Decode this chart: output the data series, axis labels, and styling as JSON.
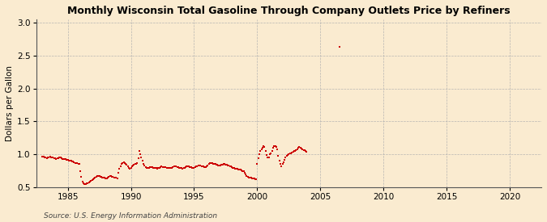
{
  "title": "Monthly Wisconsin Total Gasoline Through Company Outlets Price by Refiners",
  "ylabel": "Dollars per Gallon",
  "source": "Source: U.S. Energy Information Administration",
  "background_color": "#faebd0",
  "line_color": "#cc0000",
  "xlim": [
    1982.5,
    2022.5
  ],
  "ylim": [
    0.5,
    3.05
  ],
  "xticks": [
    1985,
    1990,
    1995,
    2000,
    2005,
    2010,
    2015,
    2020
  ],
  "yticks": [
    0.5,
    1.0,
    1.5,
    2.0,
    2.5,
    3.0
  ],
  "data": [
    [
      1983.0,
      0.96
    ],
    [
      1983.08,
      0.962
    ],
    [
      1983.17,
      0.958
    ],
    [
      1983.25,
      0.95
    ],
    [
      1983.33,
      0.945
    ],
    [
      1983.42,
      0.948
    ],
    [
      1983.5,
      0.955
    ],
    [
      1983.58,
      0.96
    ],
    [
      1983.67,
      0.958
    ],
    [
      1983.75,
      0.952
    ],
    [
      1983.83,
      0.948
    ],
    [
      1983.92,
      0.942
    ],
    [
      1984.0,
      0.938
    ],
    [
      1984.08,
      0.932
    ],
    [
      1984.17,
      0.938
    ],
    [
      1984.25,
      0.945
    ],
    [
      1984.33,
      0.95
    ],
    [
      1984.42,
      0.948
    ],
    [
      1984.5,
      0.94
    ],
    [
      1984.58,
      0.932
    ],
    [
      1984.67,
      0.928
    ],
    [
      1984.75,
      0.925
    ],
    [
      1984.83,
      0.922
    ],
    [
      1984.92,
      0.918
    ],
    [
      1985.0,
      0.912
    ],
    [
      1985.08,
      0.908
    ],
    [
      1985.17,
      0.902
    ],
    [
      1985.25,
      0.898
    ],
    [
      1985.33,
      0.892
    ],
    [
      1985.42,
      0.885
    ],
    [
      1985.5,
      0.878
    ],
    [
      1985.58,
      0.872
    ],
    [
      1985.67,
      0.868
    ],
    [
      1985.75,
      0.862
    ],
    [
      1985.83,
      0.858
    ],
    [
      1985.92,
      0.852
    ],
    [
      1986.0,
      0.74
    ],
    [
      1986.08,
      0.66
    ],
    [
      1986.17,
      0.59
    ],
    [
      1986.25,
      0.565
    ],
    [
      1986.33,
      0.548
    ],
    [
      1986.42,
      0.552
    ],
    [
      1986.5,
      0.558
    ],
    [
      1986.58,
      0.565
    ],
    [
      1986.67,
      0.572
    ],
    [
      1986.75,
      0.582
    ],
    [
      1986.83,
      0.592
    ],
    [
      1986.92,
      0.605
    ],
    [
      1987.0,
      0.618
    ],
    [
      1987.08,
      0.632
    ],
    [
      1987.17,
      0.645
    ],
    [
      1987.25,
      0.655
    ],
    [
      1987.33,
      0.665
    ],
    [
      1987.42,
      0.67
    ],
    [
      1987.5,
      0.665
    ],
    [
      1987.58,
      0.658
    ],
    [
      1987.67,
      0.652
    ],
    [
      1987.75,
      0.648
    ],
    [
      1987.83,
      0.645
    ],
    [
      1987.92,
      0.64
    ],
    [
      1988.0,
      0.635
    ],
    [
      1988.08,
      0.63
    ],
    [
      1988.17,
      0.64
    ],
    [
      1988.25,
      0.655
    ],
    [
      1988.33,
      0.668
    ],
    [
      1988.42,
      0.665
    ],
    [
      1988.5,
      0.658
    ],
    [
      1988.58,
      0.652
    ],
    [
      1988.67,
      0.648
    ],
    [
      1988.75,
      0.645
    ],
    [
      1988.83,
      0.642
    ],
    [
      1988.92,
      0.638
    ],
    [
      1989.0,
      0.715
    ],
    [
      1989.08,
      0.775
    ],
    [
      1989.17,
      0.818
    ],
    [
      1989.25,
      0.848
    ],
    [
      1989.33,
      0.868
    ],
    [
      1989.42,
      0.878
    ],
    [
      1989.5,
      0.868
    ],
    [
      1989.58,
      0.858
    ],
    [
      1989.67,
      0.838
    ],
    [
      1989.75,
      0.818
    ],
    [
      1989.83,
      0.798
    ],
    [
      1989.92,
      0.778
    ],
    [
      1990.0,
      0.798
    ],
    [
      1990.08,
      0.818
    ],
    [
      1990.17,
      0.832
    ],
    [
      1990.25,
      0.842
    ],
    [
      1990.33,
      0.852
    ],
    [
      1990.42,
      0.86
    ],
    [
      1990.5,
      0.868
    ],
    [
      1990.58,
      0.945
    ],
    [
      1990.67,
      1.048
    ],
    [
      1990.75,
      0.998
    ],
    [
      1990.83,
      0.948
    ],
    [
      1990.92,
      0.898
    ],
    [
      1991.0,
      0.858
    ],
    [
      1991.08,
      0.828
    ],
    [
      1991.17,
      0.808
    ],
    [
      1991.25,
      0.798
    ],
    [
      1991.33,
      0.795
    ],
    [
      1991.42,
      0.798
    ],
    [
      1991.5,
      0.802
    ],
    [
      1991.58,
      0.805
    ],
    [
      1991.67,
      0.802
    ],
    [
      1991.75,
      0.798
    ],
    [
      1991.83,
      0.795
    ],
    [
      1991.92,
      0.792
    ],
    [
      1992.0,
      0.788
    ],
    [
      1992.08,
      0.782
    ],
    [
      1992.17,
      0.788
    ],
    [
      1992.25,
      0.798
    ],
    [
      1992.33,
      0.808
    ],
    [
      1992.42,
      0.812
    ],
    [
      1992.5,
      0.81
    ],
    [
      1992.58,
      0.805
    ],
    [
      1992.67,
      0.802
    ],
    [
      1992.75,
      0.8
    ],
    [
      1992.83,
      0.798
    ],
    [
      1992.92,
      0.795
    ],
    [
      1993.0,
      0.792
    ],
    [
      1993.08,
      0.79
    ],
    [
      1993.17,
      0.792
    ],
    [
      1993.25,
      0.798
    ],
    [
      1993.33,
      0.805
    ],
    [
      1993.42,
      0.812
    ],
    [
      1993.5,
      0.815
    ],
    [
      1993.58,
      0.812
    ],
    [
      1993.67,
      0.808
    ],
    [
      1993.75,
      0.802
    ],
    [
      1993.83,
      0.798
    ],
    [
      1993.92,
      0.792
    ],
    [
      1994.0,
      0.788
    ],
    [
      1994.08,
      0.785
    ],
    [
      1994.17,
      0.79
    ],
    [
      1994.25,
      0.798
    ],
    [
      1994.33,
      0.808
    ],
    [
      1994.42,
      0.815
    ],
    [
      1994.5,
      0.818
    ],
    [
      1994.58,
      0.812
    ],
    [
      1994.67,
      0.808
    ],
    [
      1994.75,
      0.802
    ],
    [
      1994.83,
      0.798
    ],
    [
      1994.92,
      0.795
    ],
    [
      1995.0,
      0.798
    ],
    [
      1995.08,
      0.802
    ],
    [
      1995.17,
      0.812
    ],
    [
      1995.25,
      0.822
    ],
    [
      1995.33,
      0.828
    ],
    [
      1995.42,
      0.83
    ],
    [
      1995.5,
      0.825
    ],
    [
      1995.58,
      0.82
    ],
    [
      1995.67,
      0.815
    ],
    [
      1995.75,
      0.812
    ],
    [
      1995.83,
      0.808
    ],
    [
      1995.92,
      0.805
    ],
    [
      1996.0,
      0.818
    ],
    [
      1996.08,
      0.835
    ],
    [
      1996.17,
      0.855
    ],
    [
      1996.25,
      0.868
    ],
    [
      1996.33,
      0.872
    ],
    [
      1996.42,
      0.868
    ],
    [
      1996.5,
      0.86
    ],
    [
      1996.58,
      0.852
    ],
    [
      1996.67,
      0.848
    ],
    [
      1996.75,
      0.842
    ],
    [
      1996.83,
      0.838
    ],
    [
      1996.92,
      0.832
    ],
    [
      1997.0,
      0.83
    ],
    [
      1997.08,
      0.832
    ],
    [
      1997.17,
      0.838
    ],
    [
      1997.25,
      0.845
    ],
    [
      1997.33,
      0.85
    ],
    [
      1997.42,
      0.848
    ],
    [
      1997.5,
      0.842
    ],
    [
      1997.58,
      0.838
    ],
    [
      1997.67,
      0.832
    ],
    [
      1997.75,
      0.828
    ],
    [
      1997.83,
      0.822
    ],
    [
      1997.92,
      0.818
    ],
    [
      1998.0,
      0.808
    ],
    [
      1998.08,
      0.798
    ],
    [
      1998.17,
      0.79
    ],
    [
      1998.25,
      0.782
    ],
    [
      1998.33,
      0.778
    ],
    [
      1998.42,
      0.775
    ],
    [
      1998.5,
      0.772
    ],
    [
      1998.58,
      0.768
    ],
    [
      1998.67,
      0.762
    ],
    [
      1998.75,
      0.758
    ],
    [
      1998.83,
      0.748
    ],
    [
      1998.92,
      0.738
    ],
    [
      1999.0,
      0.718
    ],
    [
      1999.08,
      0.698
    ],
    [
      1999.17,
      0.675
    ],
    [
      1999.25,
      0.658
    ],
    [
      1999.33,
      0.648
    ],
    [
      1999.42,
      0.645
    ],
    [
      1999.5,
      0.64
    ],
    [
      1999.58,
      0.638
    ],
    [
      1999.67,
      0.635
    ],
    [
      1999.75,
      0.632
    ],
    [
      1999.83,
      0.625
    ],
    [
      1999.92,
      0.615
    ],
    [
      2000.0,
      0.858
    ],
    [
      2000.08,
      0.945
    ],
    [
      2000.17,
      0.998
    ],
    [
      2000.25,
      1.048
    ],
    [
      2000.33,
      1.078
    ],
    [
      2000.42,
      1.098
    ],
    [
      2000.5,
      1.118
    ],
    [
      2000.58,
      1.108
    ],
    [
      2000.67,
      1.048
    ],
    [
      2000.75,
      0.988
    ],
    [
      2000.83,
      0.958
    ],
    [
      2000.92,
      0.948
    ],
    [
      2001.0,
      0.998
    ],
    [
      2001.08,
      1.018
    ],
    [
      2001.17,
      1.048
    ],
    [
      2001.25,
      1.098
    ],
    [
      2001.33,
      1.118
    ],
    [
      2001.42,
      1.128
    ],
    [
      2001.5,
      1.108
    ],
    [
      2001.58,
      1.078
    ],
    [
      2001.67,
      0.978
    ],
    [
      2001.75,
      0.898
    ],
    [
      2001.83,
      0.848
    ],
    [
      2001.92,
      0.818
    ],
    [
      2002.0,
      0.848
    ],
    [
      2002.08,
      0.878
    ],
    [
      2002.17,
      0.918
    ],
    [
      2002.25,
      0.958
    ],
    [
      2002.33,
      0.978
    ],
    [
      2002.42,
      0.988
    ],
    [
      2002.5,
      0.998
    ],
    [
      2002.58,
      1.008
    ],
    [
      2002.67,
      1.018
    ],
    [
      2002.75,
      1.028
    ],
    [
      2002.83,
      1.038
    ],
    [
      2002.92,
      1.048
    ],
    [
      2003.0,
      1.048
    ],
    [
      2003.08,
      1.058
    ],
    [
      2003.17,
      1.078
    ],
    [
      2003.25,
      1.098
    ],
    [
      2003.33,
      1.108
    ],
    [
      2003.42,
      1.098
    ],
    [
      2003.5,
      1.088
    ],
    [
      2003.58,
      1.078
    ],
    [
      2003.67,
      1.068
    ],
    [
      2003.75,
      1.058
    ],
    [
      2003.83,
      1.048
    ],
    [
      2003.92,
      1.038
    ],
    [
      2006.5,
      2.63
    ]
  ]
}
